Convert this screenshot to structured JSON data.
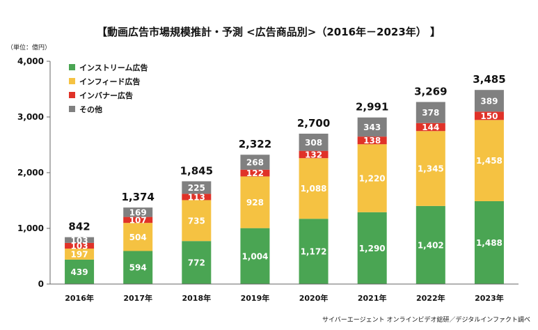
{
  "chart_data": {
    "type": "bar",
    "stacked": true,
    "title": "【動画広告市場規模推計・予測 <広告商品別>（2016年－2023年） 】",
    "unit_label": "（単位：億円）",
    "categories": [
      "2016年",
      "2017年",
      "2018年",
      "2019年",
      "2020年",
      "2021年",
      "2022年",
      "2023年"
    ],
    "series": [
      {
        "name": "インストリーム広告",
        "color": "#4aa553",
        "values": [
          439,
          594,
          772,
          1004,
          1172,
          1290,
          1402,
          1488
        ],
        "labels": [
          "439",
          "594",
          "772",
          "1,004",
          "1,172",
          "1,290",
          "1,402",
          "1,488"
        ]
      },
      {
        "name": "インフィード広告",
        "color": "#f5c242",
        "values": [
          197,
          504,
          735,
          928,
          1088,
          1220,
          1345,
          1458
        ],
        "labels": [
          "197",
          "504",
          "735",
          "928",
          "1,088",
          "1,220",
          "1,345",
          "1,458"
        ]
      },
      {
        "name": "インバナー広告",
        "color": "#e03228",
        "values": [
          103,
          107,
          113,
          122,
          132,
          138,
          144,
          150
        ],
        "labels": [
          "103",
          "107",
          "113",
          "122",
          "132",
          "138",
          "144",
          "150"
        ]
      },
      {
        "name": "その他",
        "color": "#808080",
        "values": [
          103,
          169,
          225,
          268,
          308,
          343,
          378,
          389
        ],
        "labels": [
          "103",
          "169",
          "225",
          "268",
          "308",
          "343",
          "378",
          "389"
        ]
      }
    ],
    "totals": [
      842,
      1374,
      1845,
      2322,
      2700,
      2991,
      3269,
      3485
    ],
    "total_labels": [
      "842",
      "1,374",
      "1,845",
      "2,322",
      "2,700",
      "2,991",
      "3,269",
      "3,485"
    ],
    "ylim": [
      0,
      4000
    ],
    "yticks": [
      0,
      1000,
      2000,
      3000,
      4000
    ],
    "ytick_labels": [
      "0",
      "1,000",
      "2,000",
      "3,000",
      "4,000"
    ],
    "grid": false,
    "legend_position": "top-left",
    "source": "サイバーエージェント オンラインビデオ総研／デジタルインファクト調べ"
  }
}
